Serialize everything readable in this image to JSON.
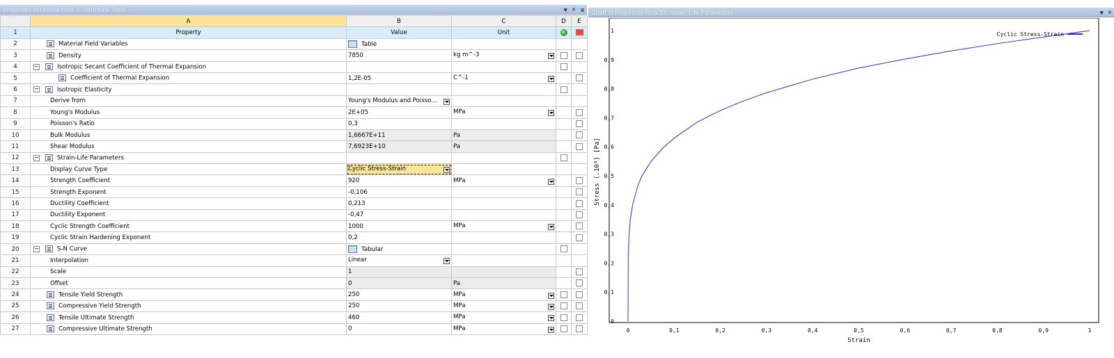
{
  "left_panel": {
    "title": "Properties of Outline Row 3: Structural Steel",
    "buttons": {
      "menu": "▾",
      "pin": "ᵖ",
      "close": "x"
    }
  },
  "right_panel": {
    "title": "Chart of Properties Row 13: Strain-Life Parameters",
    "buttons": {
      "menu": "▾",
      "pin": "ᵖ"
    }
  },
  "grid": {
    "col_letters": [
      "A",
      "B",
      "C",
      "D",
      "E"
    ],
    "header": {
      "row": "1",
      "property": "Property",
      "value": "Value",
      "unit": "Unit"
    },
    "rows": [
      {
        "n": "2",
        "label": "Material Field Variables",
        "indent": 1,
        "icon": "table-icon-prop",
        "value": "Table",
        "value_icon": true,
        "unit": "",
        "unit_dd": false,
        "d": false,
        "e": false,
        "grey": false
      },
      {
        "n": "3",
        "label": "Density",
        "indent": 1,
        "icon": "prop",
        "value": "7850",
        "unit": "kg m^-3",
        "unit_dd": true,
        "d": true,
        "e": true,
        "grey": false
      },
      {
        "n": "4",
        "label": "Isotropic Secant Coefficient of Thermal Expansion",
        "indent": 1,
        "toggle": "−",
        "icon": "prop2",
        "value": "",
        "unit": "",
        "d": true,
        "e": false,
        "grey": false
      },
      {
        "n": "5",
        "label": "Coefficient of Thermal Expansion",
        "indent": 2,
        "icon": "prop",
        "value": "1,2E-05",
        "unit": "C^-1",
        "unit_dd": true,
        "d": false,
        "e": true,
        "grey": false
      },
      {
        "n": "6",
        "label": "Isotropic Elasticity",
        "indent": 1,
        "toggle": "−",
        "icon": "prop",
        "value": "",
        "unit": "",
        "d": true,
        "e": false,
        "grey": false
      },
      {
        "n": "7",
        "label": "Derive from",
        "indent": 3,
        "value": "Young's Modulus and Poisso...",
        "value_dd": true,
        "unit": "",
        "d": false,
        "e": false,
        "grey": false
      },
      {
        "n": "8",
        "label": "Young's Modulus",
        "indent": 3,
        "value": "2E+05",
        "unit": "MPa",
        "unit_dd": true,
        "d": false,
        "e": true,
        "grey": false
      },
      {
        "n": "9",
        "label": "Poisson's Ratio",
        "indent": 3,
        "value": "0,3",
        "unit": "",
        "d": false,
        "e": true,
        "grey": false
      },
      {
        "n": "10",
        "label": "Bulk Modulus",
        "indent": 3,
        "value": "1,6667E+11",
        "unit": "Pa",
        "d": false,
        "e": true,
        "grey": true
      },
      {
        "n": "11",
        "label": "Shear Modulus",
        "indent": 3,
        "value": "7,6923E+10",
        "unit": "Pa",
        "d": false,
        "e": true,
        "grey": true
      },
      {
        "n": "12",
        "label": "Strain-Life Parameters",
        "indent": 1,
        "toggle": "−",
        "icon": "prop",
        "value": "",
        "unit": "",
        "d": true,
        "e": false,
        "grey": false
      },
      {
        "n": "13",
        "label": "Display Curve Type",
        "indent": 3,
        "value": "Cyclic Stress-Strain",
        "value_dd": true,
        "unit": "",
        "d": false,
        "e": false,
        "grey": false,
        "selected": true
      },
      {
        "n": "14",
        "label": "Strength Coefficient",
        "indent": 3,
        "value": "920",
        "unit": "MPa",
        "unit_dd": true,
        "d": false,
        "e": true,
        "grey": false
      },
      {
        "n": "15",
        "label": "Strength Exponent",
        "indent": 3,
        "value": "-0,106",
        "unit": "",
        "d": false,
        "e": true,
        "grey": false
      },
      {
        "n": "16",
        "label": "Ductility Coefficient",
        "indent": 3,
        "value": "0,213",
        "unit": "",
        "d": false,
        "e": true,
        "grey": false
      },
      {
        "n": "17",
        "label": "Ductility Exponent",
        "indent": 3,
        "value": "-0,47",
        "unit": "",
        "d": false,
        "e": true,
        "grey": false
      },
      {
        "n": "18",
        "label": "Cyclic Strength Coefficient",
        "indent": 3,
        "value": "1000",
        "unit": "MPa",
        "unit_dd": true,
        "d": false,
        "e": true,
        "grey": false
      },
      {
        "n": "19",
        "label": "Cyclic Strain Hardening Exponent",
        "indent": 3,
        "value": "0,2",
        "unit": "",
        "d": false,
        "e": true,
        "grey": false
      },
      {
        "n": "20",
        "label": "S-N Curve",
        "indent": 1,
        "toggle": "−",
        "icon": "prop",
        "value": "Tabular",
        "value_icon": true,
        "unit": "",
        "d": true,
        "e": false,
        "grey": false
      },
      {
        "n": "21",
        "label": "Interpolation",
        "indent": 3,
        "value": "Linear",
        "value_dd": true,
        "unit": "",
        "d": false,
        "e": false,
        "grey": false
      },
      {
        "n": "22",
        "label": "Scale",
        "indent": 3,
        "value": "1",
        "unit": "",
        "d": false,
        "e": true,
        "grey": true
      },
      {
        "n": "23",
        "label": "Offset",
        "indent": 3,
        "value": "0",
        "unit": "Pa",
        "d": false,
        "e": true,
        "grey": true
      },
      {
        "n": "24",
        "label": "Tensile Yield Strength",
        "indent": 1,
        "icon": "prop",
        "value": "250",
        "unit": "MPa",
        "unit_dd": true,
        "d": true,
        "e": true,
        "grey": false
      },
      {
        "n": "25",
        "label": "Compressive Yield Strength",
        "indent": 1,
        "icon": "prop",
        "value": "250",
        "unit": "MPa",
        "unit_dd": true,
        "d": true,
        "e": true,
        "grey": false
      },
      {
        "n": "26",
        "label": "Tensile Ultimate Strength",
        "indent": 1,
        "icon": "prop",
        "value": "460",
        "unit": "MPa",
        "unit_dd": true,
        "d": true,
        "e": true,
        "grey": false
      },
      {
        "n": "27",
        "label": "Compressive Ultimate Strength",
        "indent": 1,
        "icon": "prop",
        "value": "0",
        "unit": "MPa",
        "unit_dd": true,
        "d": true,
        "e": true,
        "grey": false
      }
    ]
  },
  "chart_data": {
    "type": "line",
    "title": "",
    "xlabel": "Strain",
    "ylabel": "Stress (.10⁹) [Pa]",
    "xlim": [
      0,
      1
    ],
    "ylim": [
      0,
      1
    ],
    "x_ticks": [
      "0",
      "0,1",
      "0,2",
      "0,3",
      "0,4",
      "0,5",
      "0,6",
      "0,7",
      "0,8",
      "0,9",
      "1"
    ],
    "y_ticks": [
      "0",
      "0,1",
      "0,2",
      "0,3",
      "0,4",
      "0,5",
      "0,6",
      "0,7",
      "0,8",
      "0,9",
      "1"
    ],
    "grid": true,
    "legend_position": "top-right",
    "series": [
      {
        "name": "Cyclic Stress-Strain",
        "color": "#2a2ad0",
        "x": [
          0,
          0.0005,
          0.002,
          0.005,
          0.01,
          0.02,
          0.03,
          0.05,
          0.075,
          0.1,
          0.15,
          0.2,
          0.25,
          0.3,
          0.4,
          0.5,
          0.6,
          0.7,
          0.8,
          0.9,
          1.0
        ],
        "y": [
          0,
          0.22,
          0.29,
          0.35,
          0.4,
          0.46,
          0.5,
          0.55,
          0.595,
          0.63,
          0.685,
          0.725,
          0.758,
          0.786,
          0.833,
          0.871,
          0.902,
          0.93,
          0.955,
          0.978,
          1.0
        ]
      }
    ]
  }
}
